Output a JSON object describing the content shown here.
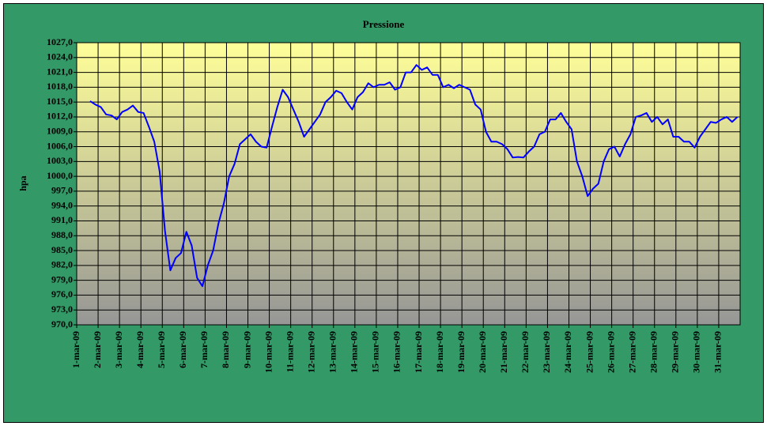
{
  "chart_data": {
    "type": "line",
    "title": "Pressione",
    "y_label": "hpa",
    "categories": [
      "1-mar-09",
      null,
      null,
      null,
      "2-mar-09",
      null,
      null,
      null,
      "3-mar-09",
      null,
      null,
      null,
      "4-mar-09",
      null,
      null,
      null,
      "5-mar-09",
      null,
      null,
      null,
      "6-mar-09",
      null,
      null,
      null,
      "7-mar-09",
      null,
      null,
      null,
      "8-mar-09",
      null,
      null,
      null,
      "9-mar-09",
      null,
      null,
      null,
      "10-mar-09",
      null,
      null,
      null,
      "11-mar-09",
      null,
      null,
      null,
      "12-mar-09",
      null,
      null,
      null,
      "13-mar-09",
      null,
      null,
      null,
      "14-mar-09",
      null,
      null,
      null,
      "15-mar-09",
      null,
      null,
      null,
      "16-mar-09",
      null,
      null,
      null,
      "17-mar-09",
      null,
      null,
      null,
      "18-mar-09",
      null,
      null,
      null,
      "19-mar-09",
      null,
      null,
      null,
      "20-mar-09",
      null,
      null,
      null,
      "21-mar-09",
      null,
      null,
      null,
      "22-mar-09",
      null,
      null,
      null,
      "23-mar-09",
      null,
      null,
      null,
      "24-mar-09",
      null,
      null,
      null,
      "25-mar-09",
      null,
      null,
      null,
      "26-mar-09",
      null,
      null,
      null,
      "27-mar-09",
      null,
      null,
      null,
      "28-mar-09",
      null,
      null,
      null,
      "29-mar-09",
      null,
      null,
      null,
      "30-mar-09",
      null,
      null,
      null,
      "31-mar-09",
      null,
      null,
      null
    ],
    "series": [
      {
        "name": "Pressione",
        "color": "#0000ff",
        "values": [
          null,
          null,
          1015.2,
          1014.5,
          1014,
          1012.5,
          1012.3,
          1011.5,
          1013,
          1013.5,
          1014.3,
          1013,
          1012.8,
          1010,
          1007,
          1001,
          989,
          981,
          983.5,
          984.5,
          988.8,
          986,
          979.5,
          977.8,
          982,
          985,
          990.5,
          994.5,
          1000,
          1002.5,
          1006.5,
          1007.5,
          1008.5,
          1007,
          1006,
          1005.8,
          1010,
          1014,
          1017.5,
          1016,
          1013.5,
          1011,
          1008,
          1009.5,
          1011,
          1012.5,
          1015,
          1016,
          1017.3,
          1016.8,
          1015,
          1013.5,
          1016,
          1017,
          1018.8,
          1018,
          1018.5,
          1018.5,
          1019,
          1017.5,
          1018,
          1021,
          1021,
          1022.5,
          1021.5,
          1022,
          1020.5,
          1020.5,
          1018,
          1018.5,
          1017.8,
          1018.5,
          1018,
          1017.5,
          1014.5,
          1013.5,
          1009,
          1007,
          1007,
          1006.5,
          1005.5,
          1003.8,
          1003.9,
          1003.8,
          1005,
          1006,
          1008.5,
          1009,
          1011.5,
          1011.5,
          1012.8,
          1011,
          1009.5,
          1003,
          1000,
          996,
          997.5,
          998.5,
          1003,
          1005.5,
          1006,
          1004,
          1006.5,
          1008.5,
          1012,
          1012.3,
          1012.8,
          1011,
          1012,
          1010.5,
          1011.5,
          1008,
          1008,
          1007,
          1007,
          1005.8,
          1008,
          1009.5,
          1011,
          1010.8,
          1011.5,
          1012,
          1011,
          1012
        ]
      }
    ],
    "ylim": [
      970,
      1027
    ],
    "yticks": [
      {
        "value": 970,
        "label": "970,0"
      },
      {
        "value": 973,
        "label": "973,0"
      },
      {
        "value": 976,
        "label": "976,0"
      },
      {
        "value": 979,
        "label": "979,0"
      },
      {
        "value": 982,
        "label": "982,0"
      },
      {
        "value": 985,
        "label": "985,0"
      },
      {
        "value": 988,
        "label": "988,0"
      },
      {
        "value": 991,
        "label": "991,0"
      },
      {
        "value": 994,
        "label": "994,0"
      },
      {
        "value": 997,
        "label": "997,0"
      },
      {
        "value": 1000,
        "label": "1000,0"
      },
      {
        "value": 1003,
        "label": "1003,0"
      },
      {
        "value": 1006,
        "label": "1006,0"
      },
      {
        "value": 1009,
        "label": "1009,0"
      },
      {
        "value": 1012,
        "label": "1012,0"
      },
      {
        "value": 1015,
        "label": "1015,0"
      },
      {
        "value": 1018,
        "label": "1018,0"
      },
      {
        "value": 1021,
        "label": "1021,0"
      },
      {
        "value": 1024,
        "label": "1024,0"
      },
      {
        "value": 1027,
        "label": "1027,0"
      }
    ],
    "grid": true
  }
}
